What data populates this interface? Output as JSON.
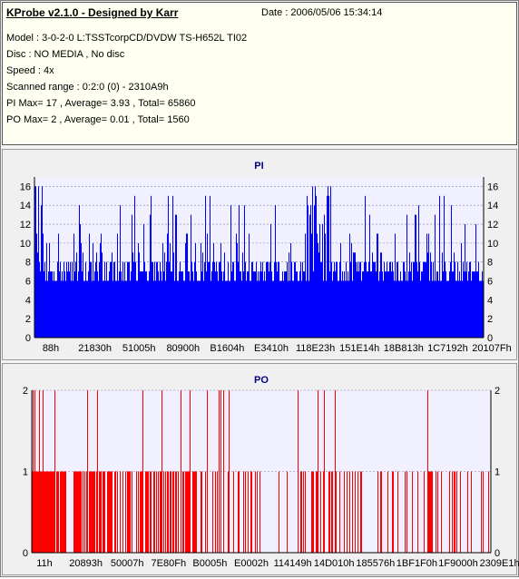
{
  "header": {
    "title": "KProbe v2.1.0 - Designed by Karr",
    "date": "Date : 2006/05/06 15:34:14",
    "lines": [
      "Model : 3-0-2-0 L:TSSTcorpCD/DVDW TS-H652L TI02",
      "Disc : NO MEDIA , No disc",
      "Speed : 4x",
      "Scanned range : 0:2:0 (0) - 2310A9h",
      "PI Max= 17 , Average= 3.93 , Total= 65860",
      "PO Max= 2 , Average= 0.01 , Total= 1560"
    ]
  },
  "colors": {
    "pi": "#0000ff",
    "po": "#ff0000",
    "plot_bg": "#f0f0ff",
    "grid": "#8080a0"
  },
  "chart_data": [
    {
      "type": "bar",
      "title": "PI",
      "ylim": [
        0,
        17
      ],
      "yticks": [
        0,
        2,
        4,
        6,
        8,
        10,
        12,
        14,
        16
      ],
      "xticks": [
        "88h",
        "21830h",
        "51005h",
        "80900h",
        "B1604h",
        "E3410h",
        "118E23h",
        "151E14h",
        "18B813h",
        "1C7192h",
        "20107Fh"
      ],
      "max": 17,
      "average": 3.93,
      "total": 65860,
      "color": "#0000ff"
    },
    {
      "type": "bar",
      "title": "PO",
      "ylim": [
        0,
        2
      ],
      "yticks": [
        0,
        1,
        2
      ],
      "xticks": [
        "11h",
        "20893h",
        "50007h",
        "7E80Fh",
        "B0005h",
        "E0002h",
        "114149h",
        "14D010h",
        "185576h",
        "1BF1F0h",
        "1F9000h",
        "2309E1h"
      ],
      "max": 2,
      "average": 0.01,
      "total": 1560,
      "color": "#ff0000"
    }
  ]
}
